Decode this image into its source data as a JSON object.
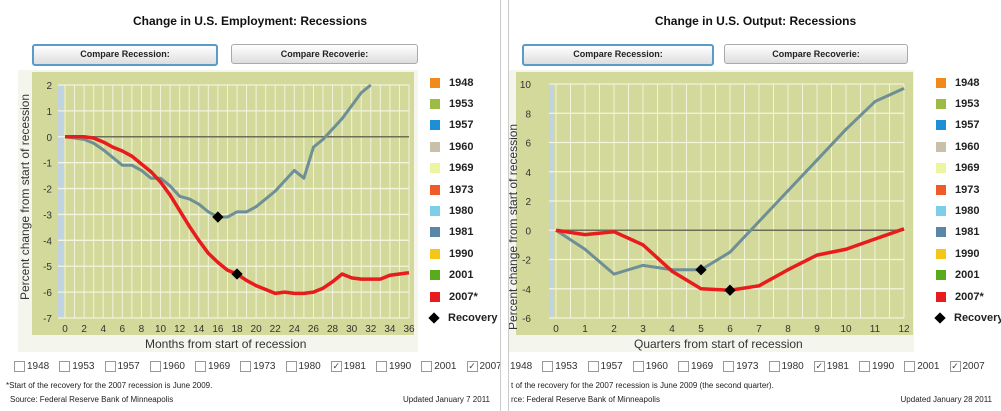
{
  "panels": [
    {
      "title": "Change in U.S. Employment: Recessions",
      "buttons": [
        "Compare Recession:",
        "Compare Recoverie:"
      ],
      "footnote": "*Start of the recovery for the 2007 recession is June 2009.",
      "source": "Source: Federal Reserve Bank of Minneapolis",
      "updated": "Updated January 7 2011"
    },
    {
      "title": "Change in U.S. Output: Recessions",
      "buttons": [
        "Compare Recession:",
        "Compare Recoverie:"
      ],
      "footnote": "t of the recovery for the 2007 recession is June 2009 (the second quarter).",
      "source": "rce: Federal Reserve Bank of Minneapolis",
      "updated": "Updated January 28 2011"
    }
  ],
  "legend": [
    {
      "label": "1948",
      "color": "#f08a1c"
    },
    {
      "label": "1953",
      "color": "#9cbb45"
    },
    {
      "label": "1957",
      "color": "#1e8fd6"
    },
    {
      "label": "1960",
      "color": "#c8c0a8"
    },
    {
      "label": "1969",
      "color": "#eef5a0"
    },
    {
      "label": "1973",
      "color": "#f05a28"
    },
    {
      "label": "1980",
      "color": "#7dcfe8"
    },
    {
      "label": "1981",
      "color": "#5a87a8"
    },
    {
      "label": "1990",
      "color": "#f5c518"
    },
    {
      "label": "2001",
      "color": "#5aaa1e"
    },
    {
      "label": "2007*",
      "color": "#e81c1c"
    },
    {
      "label": "Recovery",
      "color": "#000000"
    }
  ],
  "checkboxes": [
    {
      "label": "1948",
      "checked": false
    },
    {
      "label": "1953",
      "checked": false
    },
    {
      "label": "1957",
      "checked": false
    },
    {
      "label": "1960",
      "checked": false
    },
    {
      "label": "1969",
      "checked": false
    },
    {
      "label": "1973",
      "checked": false
    },
    {
      "label": "1980",
      "checked": false
    },
    {
      "label": "1981",
      "checked": true
    },
    {
      "label": "1990",
      "checked": false
    },
    {
      "label": "2001",
      "checked": false
    },
    {
      "label": "2007",
      "checked": true
    }
  ],
  "chart_data": [
    {
      "type": "line",
      "title": "Change in U.S. Employment: Recessions",
      "xlabel": "Months from start of recession",
      "ylabel": "Percent change from start of recession",
      "xlim": [
        0,
        36
      ],
      "ylim": [
        -7,
        2
      ],
      "xticks": [
        0,
        2,
        4,
        6,
        8,
        10,
        12,
        14,
        16,
        18,
        20,
        22,
        24,
        26,
        28,
        30,
        32,
        34,
        36
      ],
      "yticks": [
        2,
        1,
        0,
        -1,
        -2,
        -3,
        -4,
        -5,
        -6,
        -7
      ],
      "grid": true,
      "legend": "right",
      "series": [
        {
          "name": "1981",
          "color": "#6e8f96",
          "x": [
            0,
            1,
            2,
            3,
            4,
            5,
            6,
            7,
            8,
            9,
            10,
            11,
            12,
            13,
            14,
            15,
            16,
            17,
            18,
            19,
            20,
            21,
            22,
            23,
            24,
            25,
            26,
            27,
            28,
            29,
            30,
            31,
            32
          ],
          "y": [
            0,
            -0.05,
            -0.1,
            -0.25,
            -0.5,
            -0.8,
            -1.1,
            -1.1,
            -1.3,
            -1.6,
            -1.6,
            -1.9,
            -2.3,
            -2.4,
            -2.6,
            -2.9,
            -3.1,
            -3.1,
            -2.9,
            -2.9,
            -2.7,
            -2.4,
            -2.1,
            -1.7,
            -1.3,
            -1.6,
            -0.4,
            -0.1,
            0.3,
            0.7,
            1.2,
            1.7,
            2.0
          ],
          "recovery": [
            16,
            -3.1
          ]
        },
        {
          "name": "2007*",
          "color": "#e81c1c",
          "x": [
            0,
            1,
            2,
            3,
            4,
            5,
            6,
            7,
            8,
            9,
            10,
            11,
            12,
            13,
            14,
            15,
            16,
            17,
            18,
            19,
            20,
            21,
            22,
            23,
            24,
            25,
            26,
            27,
            28,
            29,
            30,
            31,
            32,
            33,
            34,
            35,
            36
          ],
          "y": [
            0,
            0,
            0,
            -0.05,
            -0.2,
            -0.4,
            -0.55,
            -0.75,
            -1.05,
            -1.35,
            -1.75,
            -2.25,
            -2.85,
            -3.45,
            -4.0,
            -4.5,
            -4.85,
            -5.15,
            -5.3,
            -5.55,
            -5.75,
            -5.9,
            -6.05,
            -6.0,
            -6.05,
            -6.05,
            -6.0,
            -5.85,
            -5.6,
            -5.3,
            -5.45,
            -5.5,
            -5.5,
            -5.5,
            -5.35,
            -5.3,
            -5.25
          ],
          "recovery": [
            18,
            -5.3
          ]
        }
      ]
    },
    {
      "type": "line",
      "title": "Change in U.S. Output: Recessions",
      "xlabel": "Quarters from start of recession",
      "ylabel": "Percent change from start of recession",
      "xlim": [
        0,
        12
      ],
      "ylim": [
        -6,
        10
      ],
      "xticks": [
        0,
        1,
        2,
        3,
        4,
        5,
        6,
        7,
        8,
        9,
        10,
        11,
        12
      ],
      "yticks": [
        10,
        8,
        6,
        4,
        2,
        0,
        -2,
        -4,
        -6
      ],
      "grid": true,
      "legend": "right",
      "series": [
        {
          "name": "1981",
          "color": "#6e8f96",
          "x": [
            0,
            1,
            2,
            3,
            4,
            5,
            6,
            7,
            8,
            9,
            10,
            11,
            12
          ],
          "y": [
            0,
            -1.3,
            -3.0,
            -2.4,
            -2.7,
            -2.7,
            -1.5,
            0.6,
            2.7,
            4.8,
            6.9,
            8.8,
            9.7
          ],
          "recovery": [
            5,
            -2.7
          ]
        },
        {
          "name": "2007*",
          "color": "#e81c1c",
          "x": [
            0,
            1,
            2,
            3,
            4,
            5,
            6,
            7,
            8,
            9,
            10,
            11,
            12
          ],
          "y": [
            0,
            -0.3,
            -0.1,
            -1.0,
            -2.8,
            -4.0,
            -4.1,
            -3.8,
            -2.7,
            -1.7,
            -1.3,
            -0.6,
            0.1
          ],
          "recovery": [
            6,
            -4.1
          ]
        }
      ]
    }
  ]
}
